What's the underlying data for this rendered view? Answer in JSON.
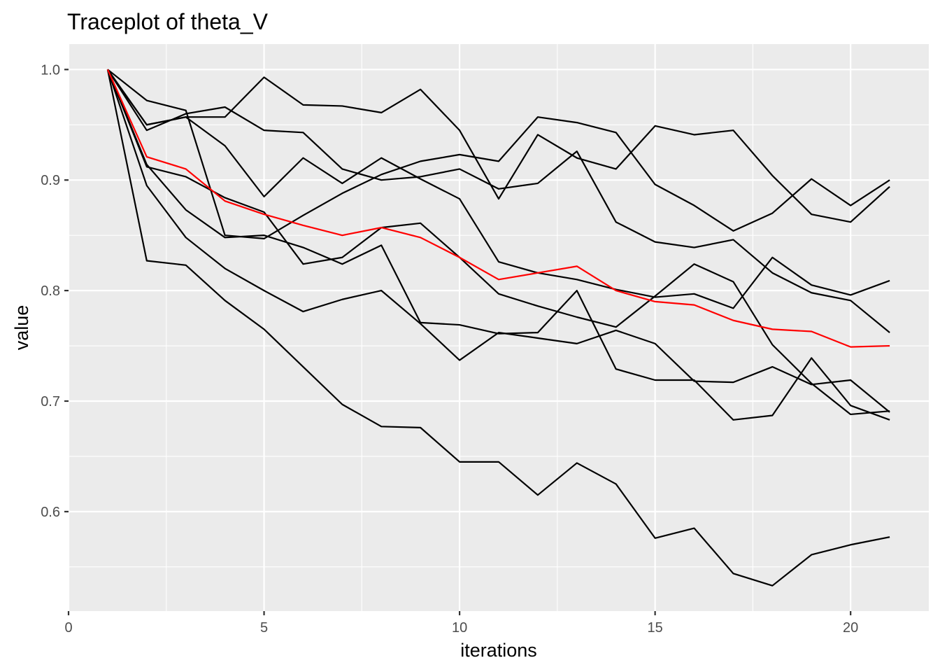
{
  "chart_data": {
    "type": "line",
    "title": "Traceplot of theta_V",
    "xlabel": "iterations",
    "ylabel": "value",
    "xlim": [
      0,
      22
    ],
    "ylim": [
      0.51,
      1.023
    ],
    "x_ticks": [
      0,
      5,
      10,
      15,
      20
    ],
    "x_tick_labels": [
      "0",
      "5",
      "10",
      "15",
      "20"
    ],
    "x_minor_ticks": [
      2.5,
      7.5,
      12.5,
      17.5
    ],
    "y_ticks": [
      0.6,
      0.7,
      0.8,
      0.9,
      1.0
    ],
    "y_tick_labels": [
      "0.6",
      "0.7",
      "0.8",
      "0.9",
      "1.0"
    ],
    "y_minor_ticks": [
      0.55,
      0.65,
      0.75,
      0.85,
      0.95
    ],
    "grid": true,
    "legend": "none",
    "colors": {
      "panel": "#ebebeb",
      "grid": "#ffffff",
      "chain": "#000000",
      "mean": "#ff0000",
      "tick": "#333333"
    },
    "x": [
      1,
      2,
      3,
      4,
      5,
      6,
      7,
      8,
      9,
      10,
      11,
      12,
      13,
      14,
      15,
      16,
      17,
      18,
      19,
      20,
      21
    ],
    "series": [
      {
        "color": "#000000",
        "values": [
          1.0,
          0.972,
          0.963,
          0.85,
          0.847,
          0.868,
          0.888,
          0.905,
          0.917,
          0.923,
          0.917,
          0.957,
          0.952,
          0.943,
          0.896,
          0.877,
          0.854,
          0.87,
          0.901,
          0.877,
          0.9
        ]
      },
      {
        "color": "#000000",
        "values": [
          1.0,
          0.95,
          0.957,
          0.957,
          0.993,
          0.968,
          0.967,
          0.961,
          0.982,
          0.945,
          0.883,
          0.941,
          0.92,
          0.91,
          0.949,
          0.941,
          0.945,
          0.904,
          0.869,
          0.862,
          0.894
        ]
      },
      {
        "color": "#000000",
        "values": [
          1.0,
          0.945,
          0.96,
          0.966,
          0.945,
          0.943,
          0.91,
          0.9,
          0.903,
          0.91,
          0.892,
          0.897,
          0.926,
          0.862,
          0.844,
          0.839,
          0.846,
          0.816,
          0.798,
          0.791,
          0.762
        ]
      },
      {
        "color": "#000000",
        "values": [
          1.0,
          0.95,
          0.957,
          0.931,
          0.885,
          0.92,
          0.897,
          0.92,
          0.901,
          0.883,
          0.826,
          0.816,
          0.81,
          0.801,
          0.794,
          0.797,
          0.784,
          0.83,
          0.805,
          0.796,
          0.809
        ]
      },
      {
        "color": "#000000",
        "values": [
          1.0,
          0.912,
          0.903,
          0.884,
          0.871,
          0.824,
          0.83,
          0.857,
          0.861,
          0.83,
          0.797,
          0.786,
          0.776,
          0.767,
          0.795,
          0.824,
          0.808,
          0.751,
          0.716,
          0.688,
          0.691
        ]
      },
      {
        "color": "#000000",
        "values": [
          1.0,
          0.914,
          0.873,
          0.848,
          0.85,
          0.839,
          0.824,
          0.841,
          0.771,
          0.769,
          0.761,
          0.762,
          0.8,
          0.729,
          0.719,
          0.719,
          0.683,
          0.687,
          0.739,
          0.696,
          0.683
        ]
      },
      {
        "color": "#000000",
        "values": [
          1.0,
          0.895,
          0.848,
          0.82,
          0.8,
          0.781,
          0.792,
          0.8,
          0.77,
          0.737,
          0.762,
          0.757,
          0.752,
          0.764,
          0.752,
          0.718,
          0.717,
          0.731,
          0.715,
          0.719,
          0.69
        ]
      },
      {
        "color": "#000000",
        "values": [
          1.0,
          0.827,
          0.823,
          0.791,
          0.765,
          0.731,
          0.697,
          0.677,
          0.676,
          0.645,
          0.645,
          0.615,
          0.644,
          0.625,
          0.576,
          0.585,
          0.544,
          0.533,
          0.561,
          0.57,
          0.577
        ]
      },
      {
        "color": "#ff0000",
        "values": [
          1.0,
          0.921,
          0.91,
          0.881,
          0.869,
          0.859,
          0.85,
          0.857,
          0.848,
          0.83,
          0.81,
          0.816,
          0.822,
          0.8,
          0.79,
          0.787,
          0.773,
          0.765,
          0.763,
          0.749,
          0.75
        ]
      }
    ]
  }
}
